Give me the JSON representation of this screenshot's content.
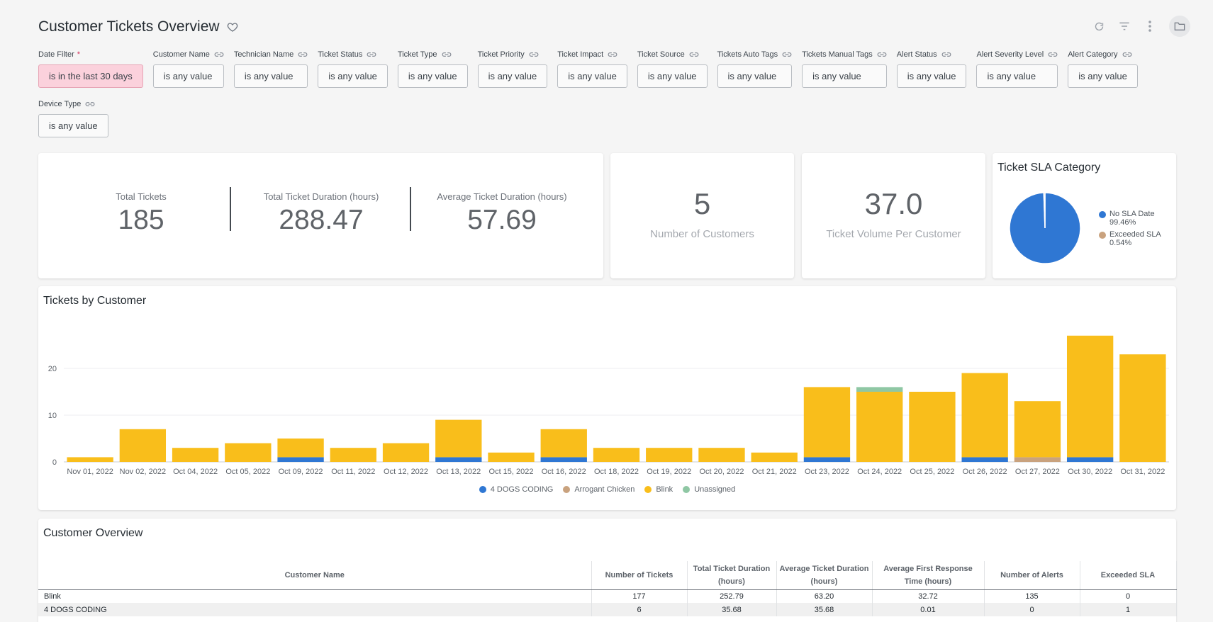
{
  "header": {
    "title": "Customer Tickets Overview"
  },
  "filters": [
    {
      "label": "Date Filter",
      "required": "*",
      "value": "is in the last 30 days"
    },
    {
      "label": "Customer Name",
      "value": "is any value"
    },
    {
      "label": "Technician Name",
      "value": "is any value"
    },
    {
      "label": "Ticket Status",
      "value": "is any value"
    },
    {
      "label": "Ticket Type",
      "value": "is any value"
    },
    {
      "label": "Ticket Priority",
      "value": "is any value"
    },
    {
      "label": "Ticket Impact",
      "value": "is any value"
    },
    {
      "label": "Ticket Source",
      "value": "is any value"
    },
    {
      "label": "Tickets Auto Tags",
      "value": "is any value"
    },
    {
      "label": "Tickets Manual Tags",
      "value": "is any value"
    },
    {
      "label": "Alert Status",
      "value": "is any value"
    },
    {
      "label": "Alert Severity Level",
      "value": "is any value"
    },
    {
      "label": "Alert Category",
      "value": "is any value"
    },
    {
      "label": "Device Type",
      "value": "is any value"
    }
  ],
  "kpis": {
    "total_tickets": {
      "label": "Total Tickets",
      "value": "185"
    },
    "total_duration": {
      "label": "Total Ticket Duration (hours)",
      "value": "288.47"
    },
    "avg_duration": {
      "label": "Average Ticket Duration (hours)",
      "value": "57.69"
    }
  },
  "customers_card": {
    "value": "5",
    "label": "Number of Customers"
  },
  "volume_card": {
    "value": "37.0",
    "label": "Ticket Volume Per Customer"
  },
  "sla_card": {
    "title": "Ticket SLA Category",
    "slices": [
      {
        "name": "No SLA Date",
        "pct_label": "99.46%",
        "value": 99.46,
        "color": "#2f77d3"
      },
      {
        "name": "Exceeded SLA",
        "pct_label": "0.54%",
        "value": 0.54,
        "color": "#c9a27e"
      }
    ]
  },
  "tickets_by_customer": {
    "title": "Tickets by Customer"
  },
  "customer_overview": {
    "title": "Customer Overview",
    "columns": [
      "Customer Name",
      "Number of Tickets",
      "Total Ticket Duration (hours)",
      "Average Ticket Duration (hours)",
      "Average First Response Time (hours)",
      "Number of Alerts",
      "Exceeded SLA"
    ],
    "rows": [
      [
        "Blink",
        "177",
        "252.79",
        "63.20",
        "32.72",
        "135",
        "0"
      ],
      [
        "4 DOGS CODING",
        "6",
        "35.68",
        "35.68",
        "0.01",
        "0",
        "1"
      ]
    ]
  },
  "chart_data": {
    "type": "bar",
    "stacked": true,
    "categories": [
      "Nov 01, 2022",
      "Nov 02, 2022",
      "Oct 04, 2022",
      "Oct 05, 2022",
      "Oct 09, 2022",
      "Oct 11, 2022",
      "Oct 12, 2022",
      "Oct 13, 2022",
      "Oct 15, 2022",
      "Oct 16, 2022",
      "Oct 18, 2022",
      "Oct 19, 2022",
      "Oct 20, 2022",
      "Oct 21, 2022",
      "Oct 23, 2022",
      "Oct 24, 2022",
      "Oct 25, 2022",
      "Oct 26, 2022",
      "Oct 27, 2022",
      "Oct 30, 2022",
      "Oct 31, 2022"
    ],
    "series": [
      {
        "name": "4 DOGS CODING",
        "color": "#2f77d3",
        "values": [
          0,
          0,
          0,
          0,
          1,
          0,
          0,
          1,
          0,
          1,
          0,
          0,
          0,
          0,
          1,
          0,
          0,
          1,
          0,
          1,
          0
        ]
      },
      {
        "name": "Arrogant Chicken",
        "color": "#c9a27e",
        "values": [
          0,
          0,
          0,
          0,
          0,
          0,
          0,
          0,
          0,
          0,
          0,
          0,
          0,
          0,
          0,
          0,
          0,
          0,
          1,
          0,
          0
        ]
      },
      {
        "name": "Blink",
        "color": "#f9be1b",
        "values": [
          1,
          7,
          3,
          4,
          4,
          3,
          4,
          8,
          2,
          6,
          3,
          3,
          3,
          2,
          15,
          15,
          15,
          18,
          12,
          26,
          23
        ]
      },
      {
        "name": "Unassigned",
        "color": "#8fc7a4",
        "values": [
          0,
          0,
          0,
          0,
          0,
          0,
          0,
          0,
          0,
          0,
          0,
          0,
          0,
          0,
          0,
          1,
          0,
          0,
          0,
          0,
          0
        ]
      }
    ],
    "yticks": [
      0,
      10,
      20
    ],
    "ylim": [
      0,
      28
    ],
    "grid": true,
    "legend": "bottom"
  }
}
